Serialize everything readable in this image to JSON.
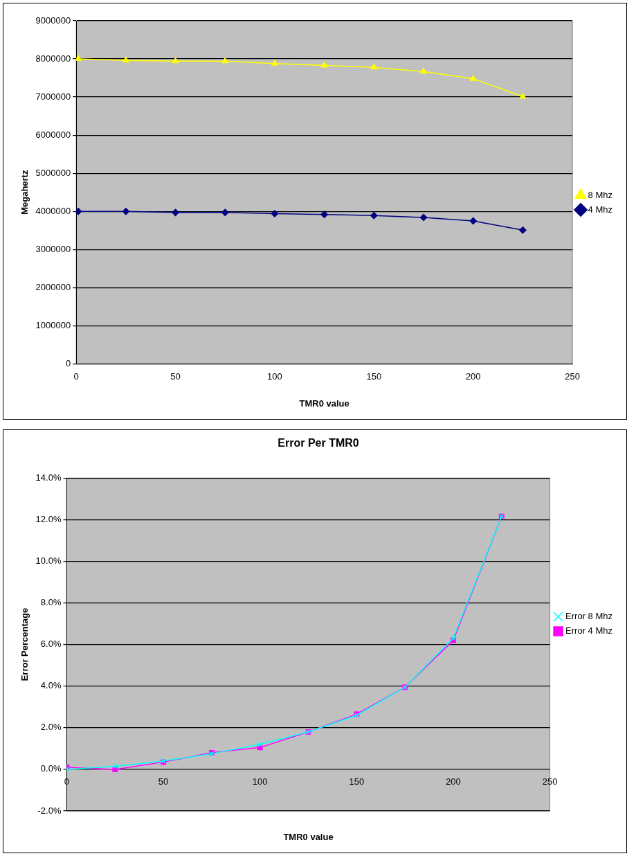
{
  "chart_data": [
    {
      "type": "line",
      "xlabel": "TMR0 value",
      "ylabel": "Megahertz",
      "x": [
        1,
        25,
        50,
        75,
        100,
        125,
        150,
        175,
        200,
        225
      ],
      "series": [
        {
          "name": "4 Mhz",
          "color": "#000080",
          "marker": "diamond",
          "values": [
            4000000,
            4000000,
            3970000,
            3970000,
            3940000,
            3920000,
            3890000,
            3840000,
            3750000,
            3510000
          ]
        },
        {
          "name": "8 Mhz",
          "color": "#ffff00",
          "marker": "triangle",
          "values": [
            8000000,
            7960000,
            7940000,
            7940000,
            7880000,
            7830000,
            7780000,
            7670000,
            7480000,
            7010000
          ]
        }
      ],
      "xlim": [
        0,
        250
      ],
      "xticks": [
        0,
        50,
        100,
        150,
        200,
        250
      ],
      "ylim": [
        0,
        9000000
      ],
      "yticks": [
        0,
        1000000,
        2000000,
        3000000,
        4000000,
        5000000,
        6000000,
        7000000,
        8000000,
        9000000
      ],
      "grid": "y",
      "legend": "right"
    },
    {
      "type": "line",
      "title": "Error Per TMR0",
      "xlabel": "TMR0 value",
      "ylabel": "Error Percentage",
      "x": [
        0,
        25,
        50,
        75,
        100,
        125,
        150,
        175,
        200,
        225
      ],
      "series": [
        {
          "name": "Error 4 Mhz",
          "color": "#ff00ff",
          "marker": "square",
          "values": [
            0.1,
            0.0,
            0.35,
            0.8,
            1.05,
            1.8,
            2.65,
            3.95,
            6.2,
            12.15
          ]
        },
        {
          "name": "Error 8 Mhz",
          "color": "#00ffff",
          "marker": "cross",
          "values": [
            0.0,
            0.15,
            0.4,
            0.75,
            1.2,
            1.8,
            2.6,
            3.95,
            6.3,
            12.15
          ]
        }
      ],
      "xlim": [
        0,
        250
      ],
      "xticks": [
        0,
        50,
        100,
        150,
        200,
        250
      ],
      "ylim": [
        -2,
        14
      ],
      "yticks": [
        {
          "value": -2,
          "label": "-2.0%"
        },
        {
          "value": 0,
          "label": "0.0%"
        },
        {
          "value": 2,
          "label": "2.0%"
        },
        {
          "value": 4,
          "label": "4.0%"
        },
        {
          "value": 6,
          "label": "6.0%"
        },
        {
          "value": 8,
          "label": "8.0%"
        },
        {
          "value": 10,
          "label": "10.0%"
        },
        {
          "value": 12,
          "label": "12.0%"
        },
        {
          "value": 14,
          "label": "14.0%"
        }
      ],
      "grid": "y",
      "legend": "right"
    }
  ]
}
